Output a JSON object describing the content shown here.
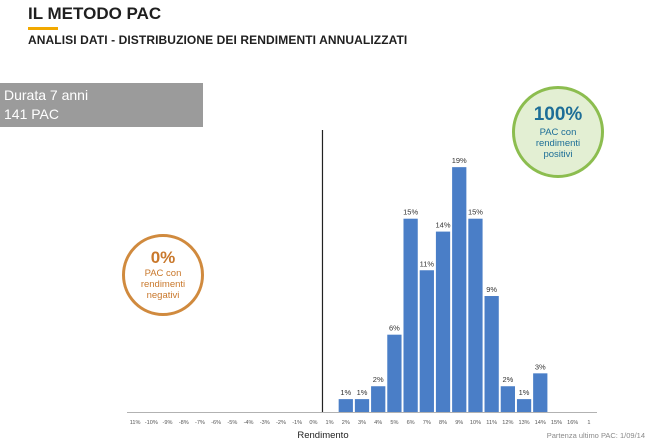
{
  "slide": {
    "title": "IL METODO PAC",
    "subtitle": "ANALISI DATI - DISTRIBUZIONE DEI RENDIMENTI ANNUALIZZATI"
  },
  "info_box": {
    "line1": "Durata 7 anni",
    "line2": "141 PAC"
  },
  "badge_positive": {
    "value": "100%",
    "line1": "PAC con",
    "line2": "rendimenti",
    "line3": "positivi"
  },
  "badge_negative": {
    "value": "0%",
    "line1": "PAC con",
    "line2": "rendimenti",
    "line3": "negativi"
  },
  "footnote": "Partenza ultimo PAC: 1/09/14",
  "colors": {
    "bar": "#4a7ec7",
    "accent": "#f2a900",
    "positive_border": "#8cbd4f",
    "positive_text": "#1d6e97",
    "negative": "#d08a3e"
  },
  "chart_data": {
    "type": "bar",
    "xlabel": "Rendimento",
    "ylabel": "",
    "ylim": [
      0,
      20
    ],
    "categories": [
      "11%",
      "-10%",
      "-9%",
      "-8%",
      "-7%",
      "-6%",
      "-5%",
      "-4%",
      "-3%",
      "-2%",
      "-1%",
      "0%",
      "1%",
      "2%",
      "3%",
      "4%",
      "5%",
      "6%",
      "7%",
      "8%",
      "9%",
      "10%",
      "11%",
      "12%",
      "13%",
      "14%",
      "15%",
      "16%",
      "1"
    ],
    "values": [
      0,
      0,
      0,
      0,
      0,
      0,
      0,
      0,
      0,
      0,
      0,
      0,
      0,
      1,
      1,
      2,
      6,
      15,
      11,
      14,
      19,
      15,
      9,
      2,
      1,
      3,
      0,
      0,
      0
    ],
    "data_labels": [
      "",
      "",
      "",
      "",
      "",
      "",
      "",
      "",
      "",
      "",
      "",
      "",
      "",
      "1%",
      "1%",
      "2%",
      "6%",
      "15%",
      "11%",
      "14%",
      "19%",
      "15%",
      "9%",
      "2%",
      "1%",
      "3%",
      "",
      "",
      ""
    ],
    "zero_line_after": "0%",
    "grid": false,
    "legend": "none"
  }
}
